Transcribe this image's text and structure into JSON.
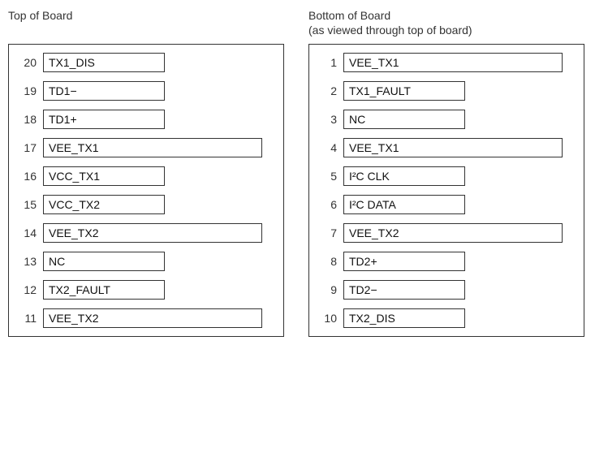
{
  "colors": {
    "background": "#ffffff",
    "border": "#333333",
    "text_heading": "#333333",
    "text_pin": "#111111",
    "text_number": "#333333"
  },
  "typography": {
    "font_family": "Arial, Helvetica, sans-serif",
    "title_fontsize": 14,
    "pin_fontsize": 14,
    "number_fontsize": 14
  },
  "layout": {
    "column_gap": 30,
    "board_width": 340,
    "row_spacing": 11,
    "pin_box_widths": {
      "short": 150,
      "mid": 150,
      "long": 270
    }
  },
  "columns": [
    {
      "title": "Top of Board",
      "subtitle": "",
      "pins": [
        {
          "num": "20",
          "label": "TX1_DIS",
          "width": "short"
        },
        {
          "num": "19",
          "label": "TD1−",
          "width": "short"
        },
        {
          "num": "18",
          "label": "TD1+",
          "width": "short"
        },
        {
          "num": "17",
          "label": "VEE_TX1",
          "width": "long"
        },
        {
          "num": "16",
          "label": "VCC_TX1",
          "width": "short"
        },
        {
          "num": "15",
          "label": "VCC_TX2",
          "width": "short"
        },
        {
          "num": "14",
          "label": "VEE_TX2",
          "width": "long"
        },
        {
          "num": "13",
          "label": "NC",
          "width": "short"
        },
        {
          "num": "12",
          "label": "TX2_FAULT",
          "width": "short"
        },
        {
          "num": "11",
          "label": "VEE_TX2",
          "width": "long"
        }
      ]
    },
    {
      "title": "Bottom of Board",
      "subtitle": "(as viewed through top of board)",
      "pins": [
        {
          "num": "1",
          "label": "VEE_TX1",
          "width": "long"
        },
        {
          "num": "2",
          "label": "TX1_FAULT",
          "width": "short"
        },
        {
          "num": "3",
          "label": "NC",
          "width": "mid"
        },
        {
          "num": "4",
          "label": "VEE_TX1",
          "width": "long"
        },
        {
          "num": "5",
          "label": "I²C CLK",
          "width": "mid"
        },
        {
          "num": "6",
          "label": "I²C DATA",
          "width": "mid"
        },
        {
          "num": "7",
          "label": "VEE_TX2",
          "width": "long"
        },
        {
          "num": "8",
          "label": "TD2+",
          "width": "short"
        },
        {
          "num": "9",
          "label": "TD2−",
          "width": "short"
        },
        {
          "num": "10",
          "label": "TX2_DIS",
          "width": "short"
        }
      ]
    }
  ]
}
